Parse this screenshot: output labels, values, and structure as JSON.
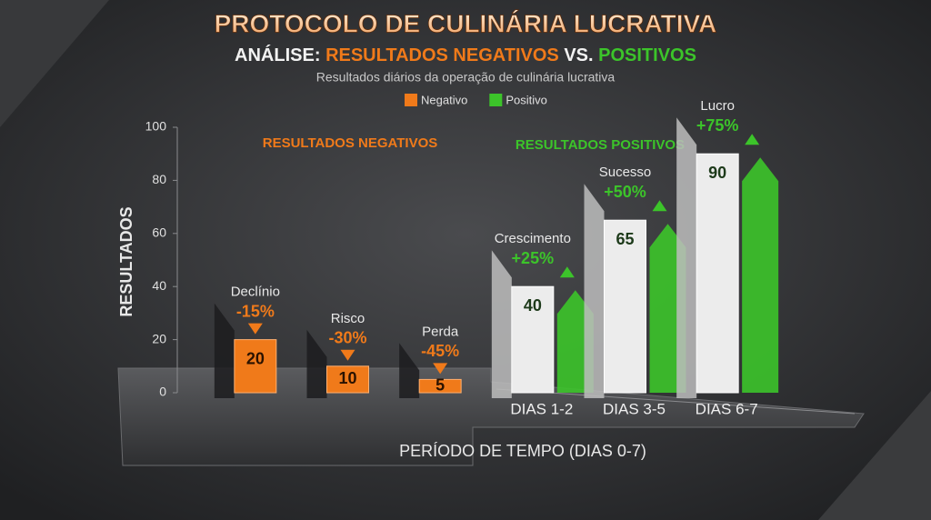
{
  "chart_data": {
    "type": "bar",
    "title": "PROTOCOLO DE CULINÁRIA LUCRATIVA",
    "subtitle": {
      "prefix": "ANÁLISE:",
      "negative": "RESULTADOS NEGATIVOS",
      "joiner": "VS.",
      "positive": "POSITIVOS"
    },
    "description": "Resultados diários da operação de culinária lucrativa",
    "y_label": "RESULTADOS",
    "x_label": "PERÍODO DE TEMPO (DIAS 0-7)",
    "section_labels": [
      "RESULTADOS NEGATIVOS",
      "RESULTADOS POSITIVOS"
    ],
    "categories": [
      null,
      null,
      null,
      "DIAS 1-2",
      "DIAS 3-5",
      "DIAS 6-7"
    ],
    "series": [
      {
        "name": "Negativo",
        "color": "#f07a1a",
        "values": [
          20,
          10,
          5,
          null,
          null,
          null
        ]
      },
      {
        "name": "Positivo",
        "color": "#3cc42a",
        "values": [
          null,
          null,
          null,
          40,
          65,
          90
        ]
      }
    ],
    "annotations": [
      {
        "text": "Declínio",
        "change": "-15%"
      },
      {
        "text": "Risco",
        "change": "-30%"
      },
      {
        "text": "Perda",
        "change": "-45%"
      },
      {
        "text": "Crescimento",
        "change": "+25%"
      },
      {
        "text": "Sucesso",
        "change": "+50%"
      },
      {
        "text": "Lucro",
        "change": "+75%"
      }
    ],
    "ylim": [
      0,
      100
    ],
    "yticks": [
      0,
      20,
      40,
      60,
      80,
      100
    ],
    "grid": false,
    "legend_position": "top"
  }
}
